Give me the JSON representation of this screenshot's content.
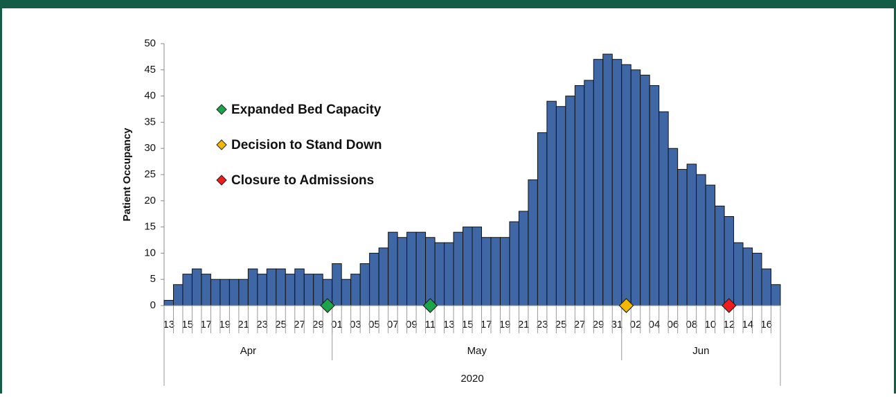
{
  "chart_data": {
    "type": "bar",
    "y_label": "Patient Occupancy",
    "color": "#3f67a6",
    "categories": [
      "13",
      null,
      "15",
      null,
      "17",
      null,
      "19",
      null,
      "21",
      null,
      "23",
      null,
      "25",
      null,
      "27",
      null,
      "29",
      null,
      "01",
      null,
      "03",
      null,
      "05",
      null,
      "07",
      null,
      "09",
      null,
      "11",
      null,
      "13",
      null,
      "15",
      null,
      "17",
      null,
      "19",
      null,
      "21",
      null,
      "23",
      null,
      "25",
      null,
      "27",
      null,
      "29",
      null,
      "31",
      null,
      "02",
      null,
      "04",
      null,
      "06",
      null,
      "08",
      null,
      "10",
      null,
      "12",
      null,
      "14",
      null,
      "16",
      null
    ],
    "values": [
      1,
      4,
      6,
      7,
      6,
      5,
      5,
      5,
      5,
      7,
      6,
      7,
      7,
      6,
      7,
      6,
      6,
      5,
      8,
      5,
      6,
      8,
      10,
      11,
      14,
      13,
      14,
      14,
      13,
      12,
      12,
      14,
      15,
      15,
      13,
      13,
      13,
      16,
      18,
      24,
      33,
      39,
      38,
      40,
      42,
      43,
      47,
      48,
      47,
      46,
      45,
      44,
      42,
      37,
      30,
      26,
      27,
      25,
      23,
      19,
      17,
      12,
      11,
      10,
      7,
      4
    ],
    "month_groups": [
      {
        "label": "Apr",
        "days": 18
      },
      {
        "label": "May",
        "days": 31
      },
      {
        "label": "Jun",
        "days": 17
      }
    ],
    "year": "2020",
    "markers": [
      {
        "name": "Expanded Bed Capacity",
        "color": "#1aa54b",
        "values": [
          null,
          null,
          null,
          null,
          null,
          null,
          null,
          null,
          null,
          null,
          null,
          null,
          null,
          null,
          null,
          null,
          null,
          0,
          null,
          null,
          null,
          null,
          null,
          null,
          null,
          null,
          null,
          null,
          0,
          null,
          null,
          null,
          null,
          null,
          null,
          null,
          null,
          null,
          null,
          null,
          null,
          null,
          null,
          null,
          null,
          null,
          null,
          null,
          null,
          null,
          null,
          null,
          null,
          null,
          null,
          null,
          null,
          null,
          null,
          null,
          null,
          null,
          null,
          null,
          null,
          null
        ]
      },
      {
        "name": "Decision to Stand Down",
        "color": "#f5b800",
        "values": [
          null,
          null,
          null,
          null,
          null,
          null,
          null,
          null,
          null,
          null,
          null,
          null,
          null,
          null,
          null,
          null,
          null,
          null,
          null,
          null,
          null,
          null,
          null,
          null,
          null,
          null,
          null,
          null,
          null,
          null,
          null,
          null,
          null,
          null,
          null,
          null,
          null,
          null,
          null,
          null,
          null,
          null,
          null,
          null,
          null,
          null,
          null,
          null,
          null,
          0,
          null,
          null,
          null,
          null,
          null,
          null,
          null,
          null,
          null,
          null,
          null,
          null,
          null,
          null,
          null,
          null
        ]
      },
      {
        "name": "Closure to Admissions",
        "color": "#ee1c1c",
        "values": [
          null,
          null,
          null,
          null,
          null,
          null,
          null,
          null,
          null,
          null,
          null,
          null,
          null,
          null,
          null,
          null,
          null,
          null,
          null,
          null,
          null,
          null,
          null,
          null,
          null,
          null,
          null,
          null,
          null,
          null,
          null,
          null,
          null,
          null,
          null,
          null,
          null,
          null,
          null,
          null,
          null,
          null,
          null,
          null,
          null,
          null,
          null,
          null,
          null,
          null,
          null,
          null,
          null,
          null,
          null,
          null,
          null,
          null,
          null,
          null,
          0,
          null,
          null,
          null,
          null,
          null
        ]
      }
    ],
    "ylim": [
      0,
      50
    ],
    "yticks": [
      0,
      5,
      10,
      15,
      20,
      25,
      30,
      35,
      40,
      45,
      50
    ]
  }
}
